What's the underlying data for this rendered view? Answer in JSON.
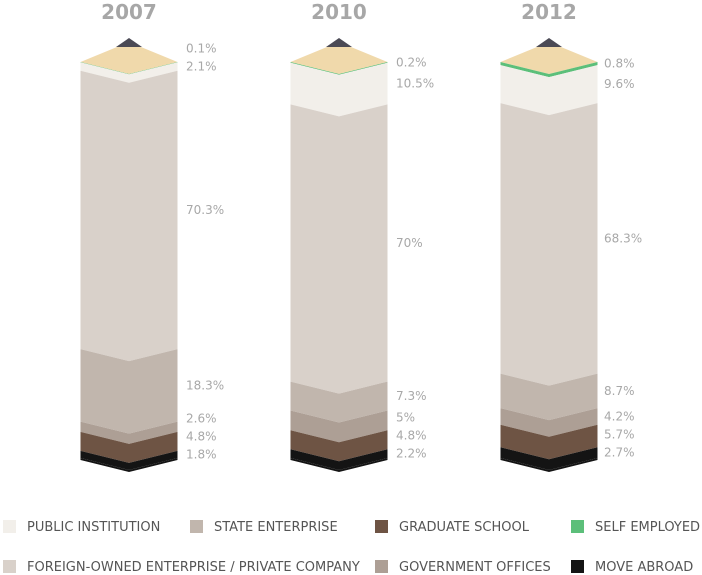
{
  "chart_data": {
    "type": "bar",
    "stacked": true,
    "categories": [
      "2007",
      "2010",
      "2012"
    ],
    "unit": "%",
    "series": [
      {
        "name": "SELF EMPLOYED",
        "color": "#5cbf7a",
        "values": [
          0.1,
          0.2,
          0.8
        ],
        "labels": [
          "0.1%",
          "0.2%",
          "0.8%"
        ]
      },
      {
        "name": "PUBLIC INSTITUTION",
        "color": "#f2efea",
        "values": [
          2.1,
          10.5,
          9.6
        ],
        "labels": [
          "2.1%",
          "10.5%",
          "9.6%"
        ]
      },
      {
        "name": "FOREIGN-OWNED ENTERPRISE / PRIVATE COMPANY",
        "color": "#d9d1ca",
        "values": [
          70.3,
          70,
          68.3
        ],
        "labels": [
          "70.3%",
          "70%",
          "68.3%"
        ]
      },
      {
        "name": "STATE ENTERPRISE",
        "color": "#c1b6ad",
        "values": [
          18.3,
          7.3,
          8.7
        ],
        "labels": [
          "18.3%",
          "7.3%",
          "8.7%"
        ]
      },
      {
        "name": "GOVERNMENT OFFICES",
        "color": "#ad9f95",
        "values": [
          2.6,
          5,
          4.2
        ],
        "labels": [
          "2.6%",
          "5%",
          "4.2%"
        ]
      },
      {
        "name": "GRADUATE SCHOOL",
        "color": "#6e5444",
        "values": [
          4.8,
          4.8,
          5.7
        ],
        "labels": [
          "4.8%",
          "4.8%",
          "5.7%"
        ]
      },
      {
        "name": "MOVE ABROAD",
        "color": "#141414",
        "values": [
          1.8,
          2.2,
          2.7
        ],
        "labels": [
          "1.8%",
          "2.2%",
          "2.7%"
        ]
      }
    ],
    "legend_order": [
      "PUBLIC INSTITUTION",
      "STATE ENTERPRISE",
      "GRADUATE SCHOOL",
      "SELF EMPLOYED",
      "FOREIGN-OWNED ENTERPRISE / PRIVATE COMPANY",
      "GOVERNMENT OFFICES",
      "MOVE ABROAD"
    ],
    "legend_placement": "bottom",
    "tip_color": "#f0d9ab",
    "lead_color": "#4b4a55",
    "grid": false
  }
}
